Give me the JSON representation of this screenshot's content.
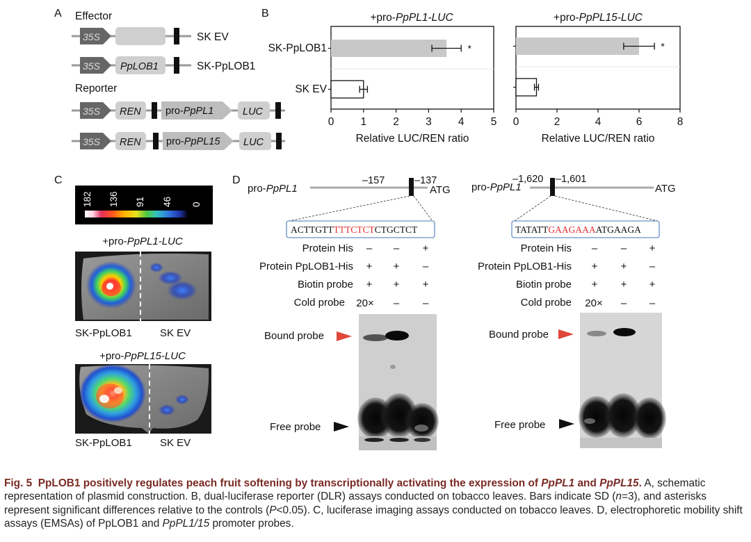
{
  "panelA": {
    "letter": "A",
    "effector_title": "Effector",
    "reporter_title": "Reporter",
    "promoter": "35S",
    "gene_ppLOB1": "PpLOB1",
    "label_sk_ev": "SK EV",
    "label_sk_pplob1": "SK-PpLOB1",
    "ren": "REN",
    "luc": "LUC",
    "pro_prefix": "pro-",
    "pppl1": "PpPL1",
    "pppl15": "PpPL15"
  },
  "panelB": {
    "letter": "B",
    "chart_left_title_prefix": "+pro-",
    "chart_left_title_gene": "PpPL1-LUC",
    "chart_right_title_prefix": "+pro-",
    "chart_right_title_gene": "PpPL15-LUC",
    "xlabel": "Relative LUC/REN ratio",
    "asterisk": "*"
  },
  "chart_data": [
    {
      "type": "bar",
      "orientation": "horizontal",
      "title": "+pro-PpPL1-LUC",
      "categories": [
        "SK-PpLOB1",
        "SK EV"
      ],
      "values": [
        3.55,
        1.0
      ],
      "error": [
        0.45,
        0.12
      ],
      "significant": [
        true,
        false
      ],
      "xlabel": "Relative LUC/REN ratio",
      "xlim": [
        0,
        5
      ],
      "xticks": [
        "0",
        "1",
        "2",
        "3",
        "4",
        "5"
      ],
      "colors": [
        "#c8c8c8",
        "#ffffff"
      ]
    },
    {
      "type": "bar",
      "orientation": "horizontal",
      "title": "+pro-PpPL15-LUC",
      "categories": [
        "SK-PpLOB1",
        "SK EV"
      ],
      "values": [
        6.0,
        1.0
      ],
      "error": [
        0.75,
        0.1
      ],
      "significant": [
        true,
        false
      ],
      "xlabel": "Relative LUC/REN ratio",
      "xlim": [
        0,
        8
      ],
      "xticks": [
        "0",
        "2",
        "4",
        "6",
        "8"
      ],
      "colors": [
        "#c8c8c8",
        "#ffffff"
      ]
    }
  ],
  "panelC": {
    "letter": "C",
    "scale": [
      "182",
      "136",
      "91",
      "46",
      "0"
    ],
    "leaf1_title_prefix": "+pro-",
    "leaf1_title_gene": "PpPL1-LUC",
    "leaf2_title_prefix": "+pro-",
    "leaf2_title_gene": "PpPL15-LUC",
    "label_left": "SK-PpLOB1",
    "label_right": "SK EV"
  },
  "panelD": {
    "letter": "D",
    "left": {
      "promoter_prefix": "pro-",
      "promoter_gene": "PpPL1",
      "pos1": "–157",
      "pos2": "–137",
      "atg": "ATG",
      "seq_pre": "ACTTGTT",
      "seq_core": "TTTCTCT",
      "seq_post": "CTGCTCT"
    },
    "right": {
      "promoter_prefix": "pro-",
      "promoter_gene": "PpPL1",
      "pos1": "–1,620",
      "pos2": "–1,601",
      "atg": "ATG",
      "seq_pre": "TATATT",
      "seq_core": "GAAGAAA",
      "seq_post": "ATGAAGA"
    },
    "rows": [
      {
        "label": "Protein His",
        "values": [
          "–",
          "–",
          "+"
        ]
      },
      {
        "label": "Protein PpLOB1-His",
        "values": [
          "+",
          "+",
          "–"
        ]
      },
      {
        "label": "Biotin probe",
        "values": [
          "+",
          "+",
          "+"
        ]
      },
      {
        "label": "Cold probe",
        "values": [
          "20×",
          "–",
          "–"
        ]
      }
    ],
    "bound_probe": "Bound probe",
    "free_probe": "Free probe",
    "arrow_red": "#e0463a",
    "arrow_black": "#111111"
  },
  "caption": {
    "fig_label": "Fig. 5",
    "title_a": "PpLOB1 positively regulates peach fruit softening by transcriptionally activating the expression of",
    "title_gene1": "PpPL1",
    "title_and": "and",
    "title_gene2": "PpPL15",
    "title_end": ".",
    "body1": "A, schematic representation of plasmid construction. B, dual-luciferase reporter (DLR) assays conducted on tobacco leaves. Bars indicate SD (",
    "n_var": "n",
    "body2": "=3), and asterisks represent significant differences relative to the controls (",
    "p_var": "P",
    "body3": "<0.05). C, luciferase imaging assays conducted on tobacco leaves. D, electrophoretic mobility shift assays (EMSAs) of PpLOB1 and",
    "caption_gene": "PpPL1/15",
    "body4": "promoter probes.",
    "title_color": "#7a2a24"
  }
}
